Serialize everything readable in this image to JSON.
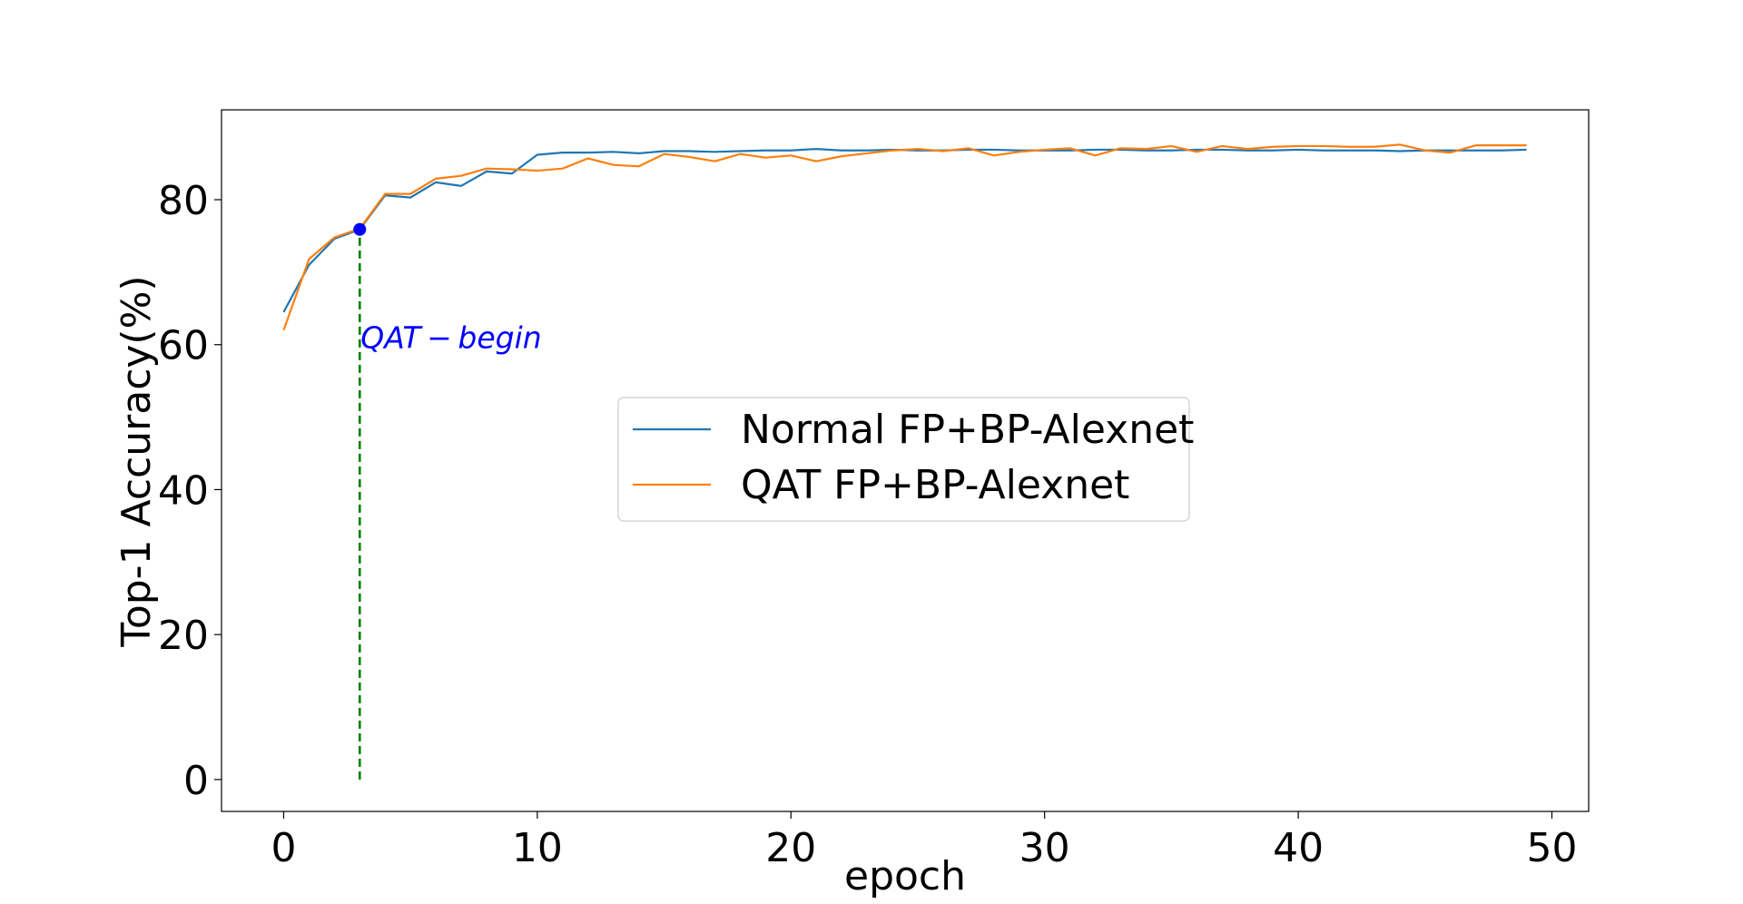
{
  "chart_data": {
    "type": "line",
    "title": "",
    "xlabel": "epoch",
    "ylabel": "Top-1 Accuracy(%)",
    "xlim": [
      -2.45,
      51.45
    ],
    "ylim": [
      -4.4,
      92.4
    ],
    "xticks": [
      0,
      10,
      20,
      30,
      40,
      50
    ],
    "xtick_labels": [
      "0",
      "10",
      "20",
      "30",
      "40",
      "50"
    ],
    "yticks": [
      0,
      20,
      40,
      60,
      80
    ],
    "ytick_labels": [
      "0",
      "20",
      "40",
      "60",
      "80"
    ],
    "grid": false,
    "legend_position": "center",
    "x": [
      0,
      1,
      2,
      3,
      4,
      5,
      6,
      7,
      8,
      9,
      10,
      11,
      12,
      13,
      14,
      15,
      16,
      17,
      18,
      19,
      20,
      21,
      22,
      23,
      24,
      25,
      26,
      27,
      28,
      29,
      30,
      31,
      32,
      33,
      34,
      35,
      36,
      37,
      38,
      39,
      40,
      41,
      42,
      43,
      44,
      45,
      46,
      47,
      48,
      49
    ],
    "series": [
      {
        "name": "Normal FP+BP-Alexnet",
        "color": "#1f77b4",
        "values": [
          64.5,
          71.0,
          74.6,
          75.9,
          80.6,
          80.3,
          82.4,
          81.9,
          83.9,
          83.6,
          86.2,
          86.5,
          86.5,
          86.6,
          86.4,
          86.7,
          86.7,
          86.6,
          86.7,
          86.8,
          86.8,
          87.0,
          86.8,
          86.8,
          86.9,
          86.8,
          86.8,
          86.9,
          86.9,
          86.8,
          86.8,
          86.8,
          86.9,
          86.9,
          86.8,
          86.8,
          86.9,
          86.9,
          86.8,
          86.8,
          86.9,
          86.8,
          86.8,
          86.8,
          86.7,
          86.8,
          86.8,
          86.8,
          86.8,
          86.9
        ]
      },
      {
        "name": "QAT FP+BP-Alexnet",
        "color": "#ff7f0e",
        "values": [
          62.0,
          71.8,
          74.8,
          76.0,
          80.8,
          80.8,
          82.9,
          83.3,
          84.3,
          84.2,
          84.0,
          84.3,
          85.7,
          84.8,
          84.6,
          86.3,
          85.9,
          85.3,
          86.3,
          85.8,
          86.1,
          85.3,
          86.0,
          86.4,
          86.8,
          87.0,
          86.7,
          87.1,
          86.1,
          86.6,
          86.9,
          87.1,
          86.1,
          87.1,
          87.0,
          87.4,
          86.6,
          87.4,
          87.0,
          87.3,
          87.4,
          87.4,
          87.3,
          87.3,
          87.6,
          86.8,
          86.5,
          87.5,
          87.5,
          87.5
        ]
      }
    ],
    "annotations": [
      {
        "text": "QAT − begin",
        "x": 3,
        "y": 61,
        "color": "#0000ff",
        "marker": {
          "x": 3,
          "y": 75.9,
          "color": "#0000ff"
        },
        "vline": {
          "x": 3,
          "y_from": 0,
          "y_to": 75.9,
          "color": "#008000",
          "style": "dashed"
        }
      }
    ]
  }
}
